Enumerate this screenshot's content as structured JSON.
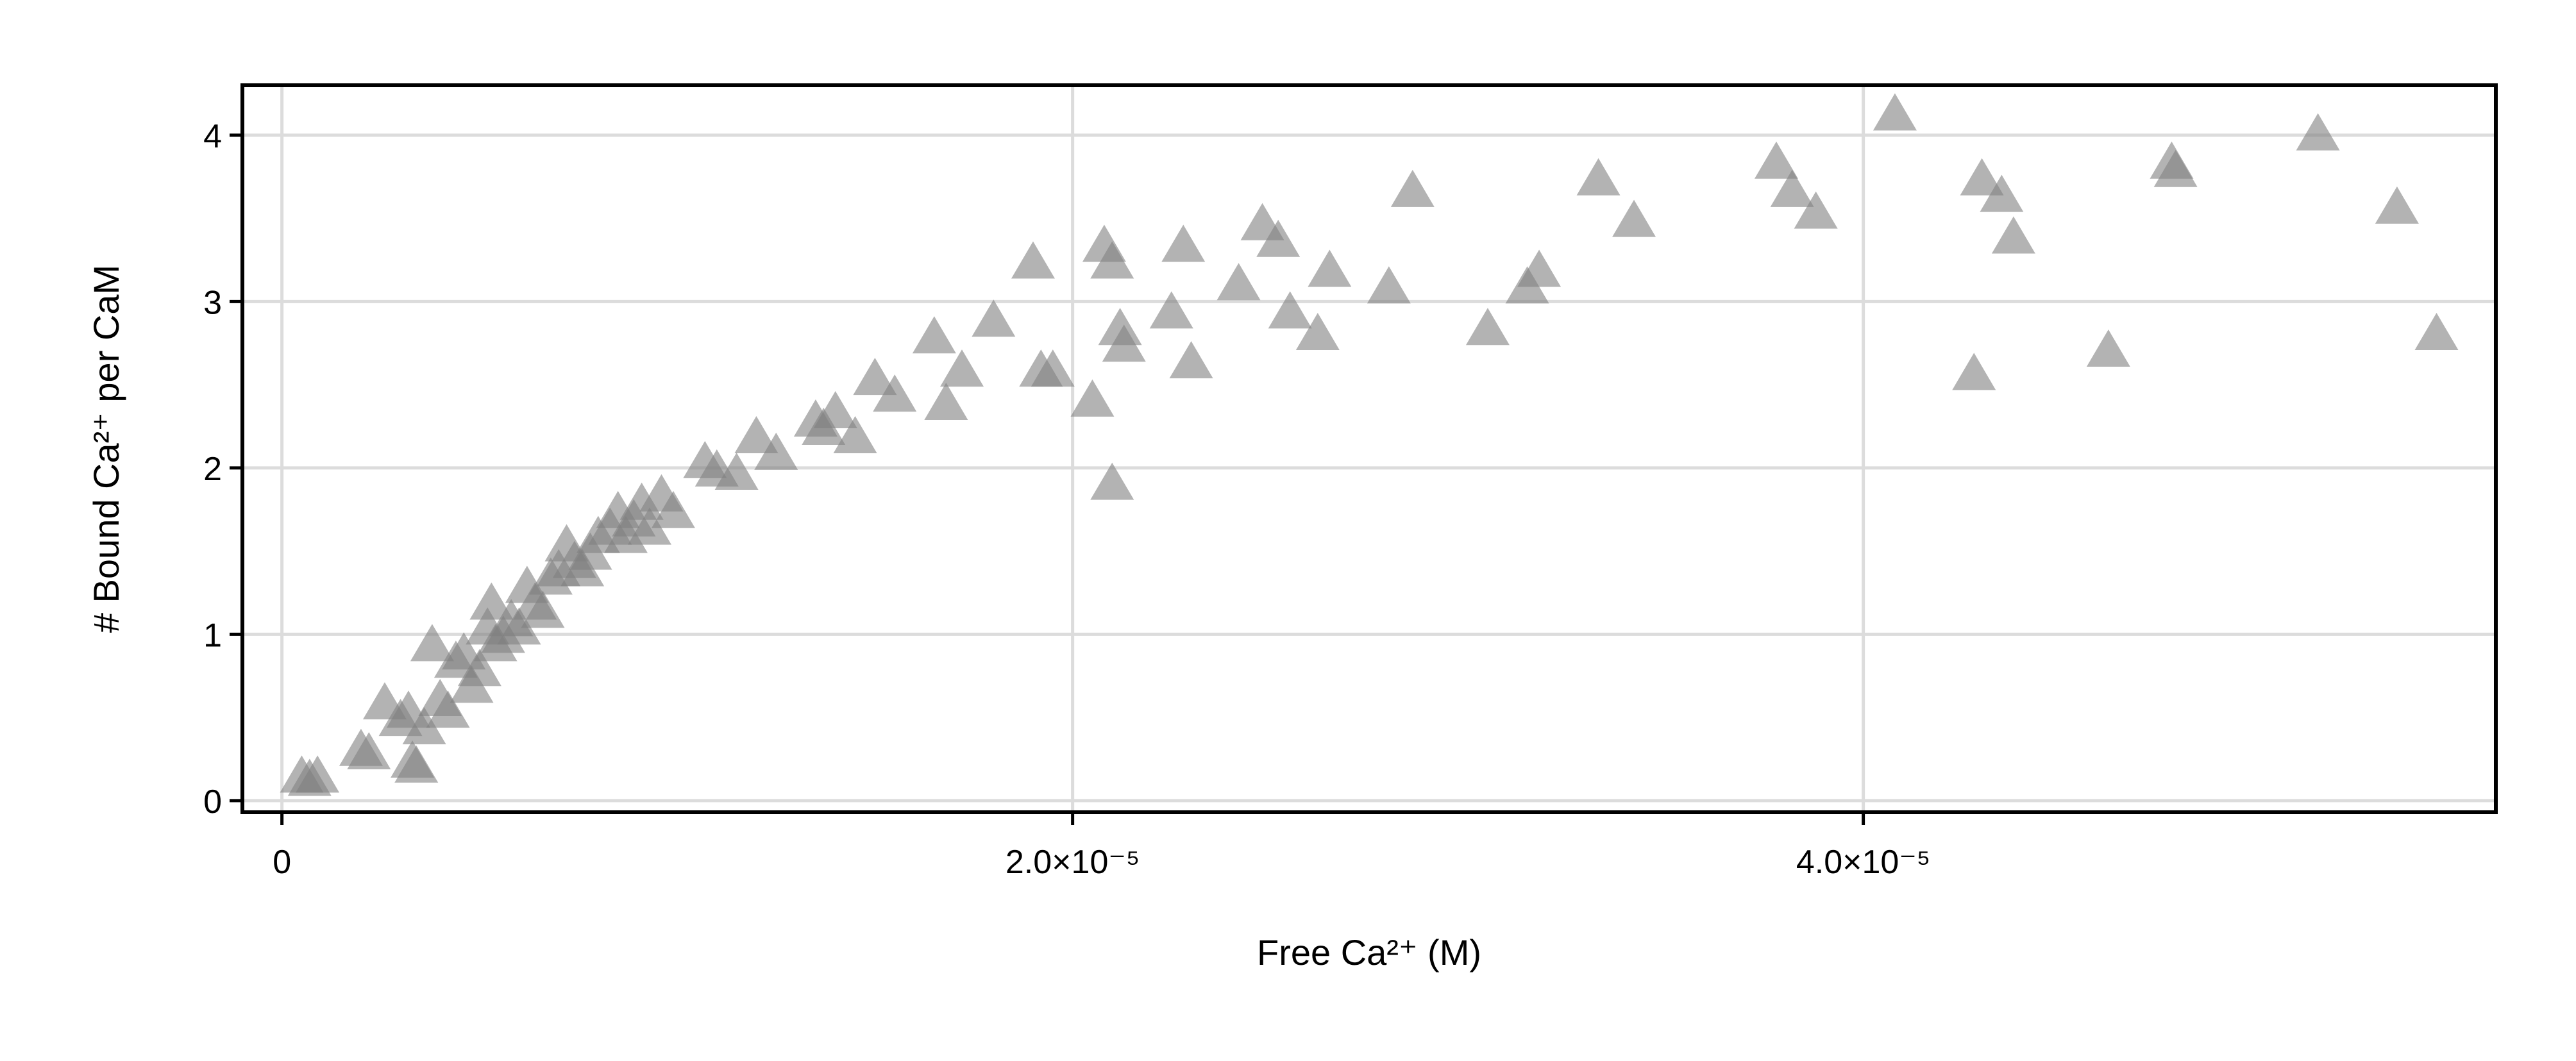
{
  "chart_data": {
    "type": "scatter",
    "title": "",
    "xlabel": "Free Ca²⁺ (M)",
    "ylabel": "# Bound Ca²⁺ per CaM",
    "xlim": [
      -1e-06,
      5.6e-05
    ],
    "ylim": [
      -0.07,
      4.3
    ],
    "xticks": [
      {
        "value": 0,
        "label": "0"
      },
      {
        "value": 2e-05,
        "label": "2.0×10⁻⁵"
      },
      {
        "value": 4e-05,
        "label": "4.0×10⁻⁵"
      }
    ],
    "yticks": [
      {
        "value": 0,
        "label": "0"
      },
      {
        "value": 1,
        "label": "1"
      },
      {
        "value": 2,
        "label": "2"
      },
      {
        "value": 3,
        "label": "3"
      },
      {
        "value": 4,
        "label": "4"
      }
    ],
    "grid": true,
    "marker": "triangle",
    "marker_color": "#808080",
    "marker_opacity": 0.6,
    "points": [
      [
        5e-07,
        0.16
      ],
      [
        7e-07,
        0.14
      ],
      [
        9e-07,
        0.16
      ],
      [
        2e-06,
        0.32
      ],
      [
        2.2e-06,
        0.3
      ],
      [
        2.6e-06,
        0.6
      ],
      [
        3e-06,
        0.5
      ],
      [
        3.2e-06,
        0.55
      ],
      [
        3.3e-06,
        0.25
      ],
      [
        3.4e-06,
        0.22
      ],
      [
        3.6e-06,
        0.45
      ],
      [
        3.8e-06,
        0.95
      ],
      [
        4e-06,
        0.62
      ],
      [
        4.2e-06,
        0.55
      ],
      [
        4.4e-06,
        0.85
      ],
      [
        4.6e-06,
        0.9
      ],
      [
        4.8e-06,
        0.7
      ],
      [
        5e-06,
        0.8
      ],
      [
        5.2e-06,
        1.05
      ],
      [
        5.3e-06,
        1.2
      ],
      [
        5.4e-06,
        0.95
      ],
      [
        5.6e-06,
        1.0
      ],
      [
        5.8e-06,
        1.1
      ],
      [
        6e-06,
        1.05
      ],
      [
        6.2e-06,
        1.3
      ],
      [
        6.4e-06,
        1.2
      ],
      [
        6.6e-06,
        1.15
      ],
      [
        6.8e-06,
        1.35
      ],
      [
        7e-06,
        1.4
      ],
      [
        7.2e-06,
        1.55
      ],
      [
        7.4e-06,
        1.45
      ],
      [
        7.6e-06,
        1.4
      ],
      [
        7.8e-06,
        1.5
      ],
      [
        8e-06,
        1.6
      ],
      [
        8.3e-06,
        1.65
      ],
      [
        8.5e-06,
        1.75
      ],
      [
        8.7e-06,
        1.6
      ],
      [
        8.9e-06,
        1.7
      ],
      [
        9.1e-06,
        1.8
      ],
      [
        9.3e-06,
        1.65
      ],
      [
        9.6e-06,
        1.85
      ],
      [
        9.9e-06,
        1.75
      ],
      [
        1.07e-05,
        2.05
      ],
      [
        1.1e-05,
        2.0
      ],
      [
        1.15e-05,
        1.98
      ],
      [
        1.2e-05,
        2.2
      ],
      [
        1.25e-05,
        2.1
      ],
      [
        1.35e-05,
        2.3
      ],
      [
        1.37e-05,
        2.25
      ],
      [
        1.4e-05,
        2.35
      ],
      [
        1.45e-05,
        2.2
      ],
      [
        1.5e-05,
        2.55
      ],
      [
        1.55e-05,
        2.45
      ],
      [
        1.65e-05,
        2.8
      ],
      [
        1.68e-05,
        2.4
      ],
      [
        1.72e-05,
        2.6
      ],
      [
        1.8e-05,
        2.9
      ],
      [
        1.9e-05,
        3.25
      ],
      [
        1.92e-05,
        2.6
      ],
      [
        1.95e-05,
        2.6
      ],
      [
        2.05e-05,
        2.42
      ],
      [
        2.08e-05,
        3.35
      ],
      [
        2.1e-05,
        3.25
      ],
      [
        2.1e-05,
        1.92
      ],
      [
        2.12e-05,
        2.85
      ],
      [
        2.13e-05,
        2.75
      ],
      [
        2.25e-05,
        2.95
      ],
      [
        2.28e-05,
        3.35
      ],
      [
        2.3e-05,
        2.65
      ],
      [
        2.42e-05,
        3.12
      ],
      [
        2.48e-05,
        3.48
      ],
      [
        2.52e-05,
        3.38
      ],
      [
        2.55e-05,
        2.95
      ],
      [
        2.62e-05,
        2.82
      ],
      [
        2.65e-05,
        3.2
      ],
      [
        2.8e-05,
        3.1
      ],
      [
        2.86e-05,
        3.68
      ],
      [
        3.05e-05,
        2.85
      ],
      [
        3.15e-05,
        3.1
      ],
      [
        3.18e-05,
        3.2
      ],
      [
        3.33e-05,
        3.75
      ],
      [
        3.42e-05,
        3.5
      ],
      [
        3.78e-05,
        3.85
      ],
      [
        3.82e-05,
        3.68
      ],
      [
        3.88e-05,
        3.55
      ],
      [
        4.08e-05,
        4.14
      ],
      [
        4.28e-05,
        2.58
      ],
      [
        4.3e-05,
        3.75
      ],
      [
        4.35e-05,
        3.65
      ],
      [
        4.38e-05,
        3.4
      ],
      [
        4.62e-05,
        2.72
      ],
      [
        4.78e-05,
        3.85
      ],
      [
        4.79e-05,
        3.8
      ],
      [
        5.15e-05,
        4.02
      ],
      [
        5.35e-05,
        3.58
      ],
      [
        5.45e-05,
        2.82
      ]
    ]
  }
}
